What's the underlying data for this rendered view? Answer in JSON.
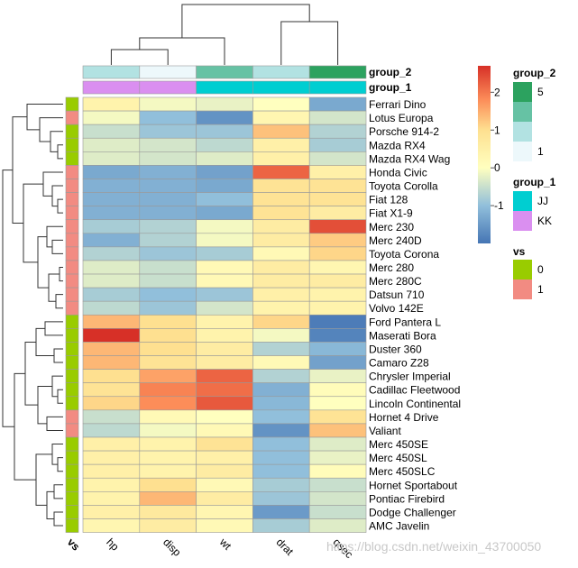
{
  "chart_data": {
    "type": "heatmap",
    "columns": [
      "hp",
      "disp",
      "wt",
      "drat",
      "qsec"
    ],
    "column_order": [
      "hp",
      "disp",
      "wt",
      "drat",
      "qsec"
    ],
    "vs_axis_label": "vs",
    "row_order": [
      "Ferrari Dino",
      "Lotus Europa",
      "Porsche 914-2",
      "Mazda RX4",
      "Mazda RX4 Wag",
      "Honda Civic",
      "Toyota Corolla",
      "Fiat 128",
      "Fiat X1-9",
      "Merc 230",
      "Merc 240D",
      "Toyota Corona",
      "Merc 280",
      "Merc 280C",
      "Datsun 710",
      "Volvo 142E",
      "Ford Pantera L",
      "Maserati Bora",
      "Duster 360",
      "Camaro Z28",
      "Chrysler Imperial",
      "Cadillac Fleetwood",
      "Lincoln Continental",
      "Hornet 4 Drive",
      "Valiant",
      "Merc 450SE",
      "Merc 450SL",
      "Merc 450SLC",
      "Hornet Sportabout",
      "Pontiac Firebird",
      "Dodge Challenger",
      "AMC Javelin"
    ],
    "rows": [
      {
        "name": "Ferrari Dino",
        "vs": 0,
        "values": [
          0.4,
          -0.1,
          -0.2,
          0.0,
          -1.3
        ]
      },
      {
        "name": "Lotus Europa",
        "vs": 1,
        "values": [
          -0.1,
          -1.0,
          -1.6,
          0.3,
          -0.4
        ]
      },
      {
        "name": "Porsche 914-2",
        "vs": 0,
        "values": [
          -0.5,
          -0.9,
          -0.9,
          1.3,
          -0.7
        ]
      },
      {
        "name": "Mazda RX4",
        "vs": 0,
        "values": [
          -0.3,
          -0.4,
          -0.6,
          0.5,
          -0.8
        ]
      },
      {
        "name": "Mazda RX4 Wag",
        "vs": 0,
        "values": [
          -0.3,
          -0.4,
          -0.3,
          0.5,
          -0.4
        ]
      },
      {
        "name": "Honda Civic",
        "vs": 1,
        "values": [
          -1.3,
          -1.2,
          -1.4,
          2.2,
          0.5
        ]
      },
      {
        "name": "Toyota Corolla",
        "vs": 1,
        "values": [
          -1.2,
          -1.2,
          -1.3,
          0.9,
          0.9
        ]
      },
      {
        "name": "Fiat 128",
        "vs": 1,
        "values": [
          -1.2,
          -1.2,
          -1.0,
          0.9,
          0.9
        ]
      },
      {
        "name": "Fiat X1-9",
        "vs": 1,
        "values": [
          -1.2,
          -1.2,
          -1.3,
          0.9,
          0.6
        ]
      },
      {
        "name": "Merc 230",
        "vs": 1,
        "values": [
          -0.8,
          -0.7,
          -0.1,
          0.6,
          2.4
        ]
      },
      {
        "name": "Merc 240D",
        "vs": 1,
        "values": [
          -1.2,
          -0.7,
          -0.1,
          0.6,
          1.2
        ]
      },
      {
        "name": "Toyota Corona",
        "vs": 1,
        "values": [
          -0.7,
          -0.9,
          -0.8,
          0.2,
          1.1
        ]
      },
      {
        "name": "Merc 280",
        "vs": 1,
        "values": [
          -0.3,
          -0.5,
          0.2,
          0.6,
          0.3
        ]
      },
      {
        "name": "Merc 280C",
        "vs": 1,
        "values": [
          -0.3,
          -0.5,
          0.2,
          0.6,
          0.6
        ]
      },
      {
        "name": "Datsun 710",
        "vs": 1,
        "values": [
          -0.8,
          -1.0,
          -0.9,
          0.5,
          0.4
        ]
      },
      {
        "name": "Volvo 142E",
        "vs": 1,
        "values": [
          -0.6,
          -0.9,
          -0.4,
          0.4,
          0.4
        ]
      },
      {
        "name": "Ford Pantera L",
        "vs": 0,
        "values": [
          1.4,
          1.0,
          0.4,
          1.1,
          -1.9
        ]
      },
      {
        "name": "Maserati Bora",
        "vs": 0,
        "values": [
          2.7,
          1.0,
          0.4,
          -0.1,
          -1.8
        ]
      },
      {
        "name": "Duster 360",
        "vs": 0,
        "values": [
          1.4,
          1.0,
          0.6,
          -0.7,
          -1.1
        ]
      },
      {
        "name": "Camaro Z28",
        "vs": 0,
        "values": [
          1.4,
          0.9,
          0.6,
          0.2,
          -1.4
        ]
      },
      {
        "name": "Chrysler Imperial",
        "vs": 0,
        "values": [
          1.0,
          1.6,
          2.2,
          -0.7,
          -0.2
        ]
      },
      {
        "name": "Cadillac Fleetwood",
        "vs": 0,
        "values": [
          0.9,
          1.9,
          2.1,
          -1.2,
          0.1
        ]
      },
      {
        "name": "Lincoln Continental",
        "vs": 0,
        "values": [
          1.1,
          1.8,
          2.3,
          -1.1,
          0.0
        ]
      },
      {
        "name": "Hornet 4 Drive",
        "vs": 1,
        "values": [
          -0.5,
          0.2,
          0.0,
          -1.0,
          0.9
        ]
      },
      {
        "name": "Valiant",
        "vs": 1,
        "values": [
          -0.6,
          -0.1,
          0.2,
          -1.6,
          1.3
        ]
      },
      {
        "name": "Merc 450SE",
        "vs": 0,
        "values": [
          0.5,
          0.4,
          0.9,
          -1.0,
          -0.3
        ]
      },
      {
        "name": "Merc 450SL",
        "vs": 0,
        "values": [
          0.5,
          0.4,
          0.5,
          -1.0,
          -0.2
        ]
      },
      {
        "name": "Merc 450SLC",
        "vs": 0,
        "values": [
          0.5,
          0.4,
          0.6,
          -1.0,
          0.1
        ]
      },
      {
        "name": "Hornet Sportabout",
        "vs": 0,
        "values": [
          0.4,
          1.0,
          0.2,
          -0.8,
          -0.5
        ]
      },
      {
        "name": "Pontiac Firebird",
        "vs": 0,
        "values": [
          0.4,
          1.4,
          0.6,
          -0.9,
          -0.4
        ]
      },
      {
        "name": "Dodge Challenger",
        "vs": 0,
        "values": [
          0.5,
          0.7,
          0.3,
          -1.5,
          -0.5
        ]
      },
      {
        "name": "AMC Javelin",
        "vs": 0,
        "values": [
          0.3,
          0.6,
          0.2,
          -0.8,
          -0.3
        ]
      }
    ],
    "column_annotations": {
      "group_2": {
        "label": "group_2",
        "values": [
          2,
          1,
          4,
          3,
          5
        ]
      },
      "group_1": {
        "label": "group_1",
        "values": [
          "KK",
          "KK",
          "JJ",
          "JJ",
          "JJ"
        ]
      }
    },
    "color_scale": {
      "range": [
        -2,
        2.7
      ],
      "ticks": [
        "2",
        "1",
        "0",
        "-1"
      ],
      "tick_values": [
        2,
        1,
        0,
        -1
      ],
      "stops": [
        {
          "v": -2.0,
          "color": "#4575b4"
        },
        {
          "v": -1.0,
          "color": "#91bfdb"
        },
        {
          "v": 0.0,
          "color": "#ffffbf"
        },
        {
          "v": 1.0,
          "color": "#fee090"
        },
        {
          "v": 1.8,
          "color": "#fc8d59"
        },
        {
          "v": 2.7,
          "color": "#d73027"
        }
      ]
    },
    "legends": {
      "group_2": {
        "title": "group_2",
        "high_label": "5",
        "low_label": "1",
        "colors": [
          "#2ca25f",
          "#66c2a4",
          "#b2e2e2",
          "#edf8fb"
        ]
      },
      "group_1": {
        "title": "group_1",
        "items": [
          {
            "label": "JJ",
            "color": "#00ced1"
          },
          {
            "label": "KK",
            "color": "#da8ff0"
          }
        ]
      },
      "vs": {
        "title": "vs",
        "items": [
          {
            "label": "0",
            "color": "#99cc00"
          },
          {
            "label": "1",
            "color": "#f28b82"
          }
        ]
      }
    }
  },
  "watermark": "https://blog.csdn.net/weixin_43700050"
}
